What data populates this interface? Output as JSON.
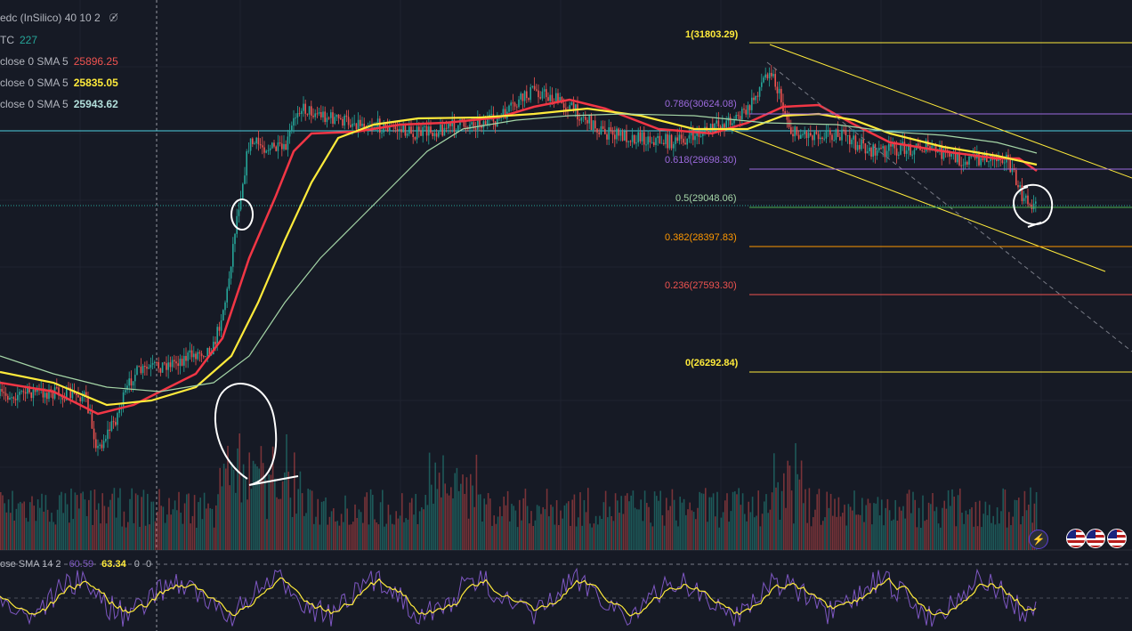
{
  "header": {
    "indicator_title": "edc (InSilico) 40 10 2",
    "hide_icon": "eye-off-icon"
  },
  "legend_rows": [
    {
      "label": "TC",
      "value": "227",
      "color": "#26a69a"
    },
    {
      "label": "close 0 SMA 5",
      "value": "25896.25",
      "color": "#ef5350"
    },
    {
      "label": "close 0 SMA 5",
      "value": "25835.05",
      "color": "#ffeb3b"
    },
    {
      "label": "close 0 SMA 5",
      "value": "25943.62",
      "color": "#b2dfdb"
    }
  ],
  "fib_levels": [
    {
      "label": "1(31803.29)",
      "price": 31803.29,
      "color": "#ffeb3b"
    },
    {
      "label": "0.786(30624.08)",
      "price": 30624.08,
      "color": "#9c6ade"
    },
    {
      "label": "0.618(29698.30)",
      "price": 29698.3,
      "color": "#9c6ade"
    },
    {
      "label": "0.5(29048.06)",
      "price": 29048.06,
      "color": "#4caf50"
    },
    {
      "label": "0.382(28397.83)",
      "price": 28397.83,
      "color": "#ff9800"
    },
    {
      "label": "0.236(27593.30)",
      "price": 27593.3,
      "color": "#ef5350"
    },
    {
      "label": "0(26292.84)",
      "price": 26292.84,
      "color": "#ffeb3b"
    }
  ],
  "rsi": {
    "label": "ose SMA 14 2",
    "value_1": "60.59",
    "value_2": "63.34",
    "value_3": "0",
    "value_4": "0"
  },
  "colors": {
    "bull": "#26a69a",
    "bear": "#ef5350",
    "sma_red": "#f23645",
    "sma_yellow": "#ffeb3b",
    "sma_teal": "#a5d6a7",
    "rsi_line": "#7e57c2",
    "rsi_signal": "#ffeb3b"
  },
  "toolbar": {
    "bolt_icon": "lightning-icon",
    "flag_icon": "us-flag-icon"
  }
}
